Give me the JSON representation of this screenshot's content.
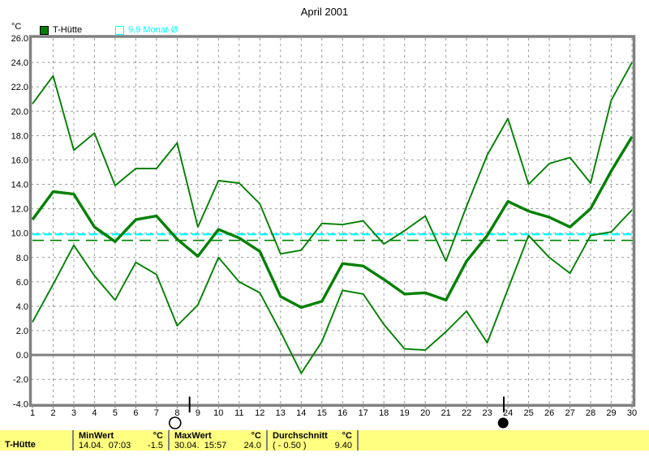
{
  "chart_data": {
    "type": "line",
    "title": "April 2001",
    "ylabel": "°C",
    "ylim": [
      -4,
      26
    ],
    "grid": true,
    "line_color": "#008000",
    "x_ticks": [
      1,
      2,
      3,
      4,
      5,
      6,
      7,
      8,
      9,
      10,
      11,
      12,
      13,
      14,
      15,
      16,
      17,
      18,
      19,
      20,
      21,
      22,
      23,
      24,
      25,
      26,
      27,
      28,
      29,
      30
    ],
    "y_ticks": [
      26,
      24,
      22,
      20,
      18,
      16,
      14,
      12,
      10,
      8,
      6,
      4,
      2,
      0,
      -2,
      -4
    ],
    "legend": [
      {
        "label": "T-Hütte",
        "color": "#008000",
        "swatch": "filled-square"
      },
      {
        "label": "9.9 Monat-Ø",
        "color": "#00ffff",
        "swatch": "outline-square"
      }
    ],
    "series": [
      {
        "role": "max",
        "values": [
          20.6,
          22.9,
          16.8,
          18.2,
          13.9,
          15.3,
          15.3,
          17.4,
          10.5,
          14.3,
          14.1,
          12.4,
          8.3,
          8.6,
          10.8,
          10.7,
          11.0,
          9.1,
          10.2,
          11.4,
          7.7,
          12.2,
          16.4,
          19.4,
          14.0,
          15.7,
          16.2,
          14.1,
          20.9,
          24.0
        ]
      },
      {
        "role": "mean",
        "values": [
          11.1,
          13.4,
          13.2,
          10.5,
          9.3,
          11.1,
          11.4,
          9.5,
          8.1,
          10.3,
          9.6,
          8.5,
          4.8,
          3.9,
          4.4,
          7.5,
          7.3,
          6.2,
          5.0,
          5.1,
          4.5,
          7.7,
          9.8,
          12.6,
          11.8,
          11.3,
          10.5,
          12.0,
          15.1,
          17.9
        ]
      },
      {
        "role": "min",
        "values": [
          2.7,
          5.8,
          9.0,
          6.5,
          4.5,
          7.6,
          6.6,
          2.4,
          4.1,
          8.0,
          6.0,
          5.1,
          1.9,
          -1.5,
          1.1,
          5.3,
          5.0,
          2.5,
          0.5,
          0.4,
          1.9,
          3.6,
          1.0,
          5.4,
          9.8,
          8.0,
          6.7,
          9.8,
          10.1,
          11.9
        ]
      }
    ],
    "reference_lines": [
      {
        "value": 9.9,
        "color": "#00ffff",
        "name": "month-average-reference-line"
      },
      {
        "value": 9.4,
        "color": "#008000",
        "name": "period-average-reference-line"
      }
    ],
    "markers": [
      {
        "shape": "open-circle",
        "name": "full-moon-marker",
        "day": 7.9,
        "tick_day": 8.6
      },
      {
        "shape": "filled-circle",
        "name": "new-moon-marker",
        "day": 23.77,
        "tick_day": 23.8
      }
    ]
  },
  "status_bar": {
    "bg": "#ffff80",
    "row_label": "T-Hütte",
    "columns": [
      {
        "header": "MinWert",
        "unit": "°C",
        "value": "14.04.  07:03",
        "number": "-1.5"
      },
      {
        "header": "MaxWert",
        "unit": "°C",
        "value": "30.04.  15:57",
        "number": "24.0"
      },
      {
        "header": "Durchschnitt",
        "unit": "°C",
        "value": "( - 0.50 )",
        "number": "9.40"
      }
    ]
  }
}
